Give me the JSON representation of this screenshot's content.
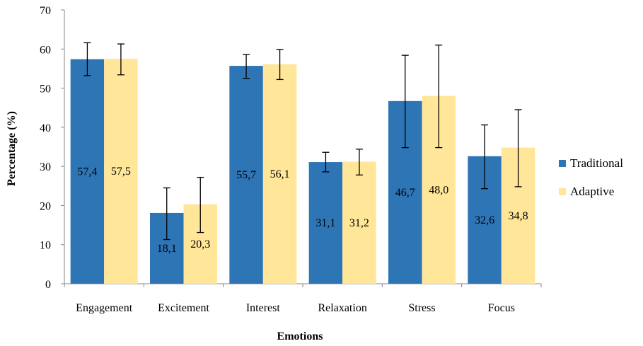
{
  "chart_data": {
    "type": "bar",
    "categories": [
      "Engagement",
      "Excitement",
      "Interest",
      "Relaxation",
      "Stress",
      "Focus"
    ],
    "series": [
      {
        "name": "Traditional",
        "color": "#2E75B6",
        "values": [
          57.4,
          18.1,
          55.7,
          31.1,
          46.7,
          32.6
        ],
        "labels": [
          "57,4",
          "18,1",
          "55,7",
          "31,1",
          "46,7",
          "32,6"
        ],
        "error_low": [
          53.2,
          11.3,
          52.5,
          28.6,
          34.8,
          24.3
        ],
        "error_high": [
          61.6,
          24.5,
          58.6,
          33.6,
          58.4,
          40.6
        ]
      },
      {
        "name": "Adaptive",
        "color": "#FFE699",
        "values": [
          57.5,
          20.3,
          56.1,
          31.2,
          48.0,
          34.8
        ],
        "labels": [
          "57,5",
          "20,3",
          "56,1",
          "31,2",
          "48,0",
          "34,8"
        ],
        "error_low": [
          53.4,
          13.1,
          52.2,
          27.8,
          34.8,
          24.8
        ],
        "error_high": [
          61.3,
          27.2,
          59.9,
          34.4,
          61.0,
          44.5
        ]
      }
    ],
    "xlabel": "Emotions",
    "ylabel": "Percentage (%)",
    "ylim": [
      0,
      70
    ],
    "yticks": [
      0,
      10,
      20,
      30,
      40,
      50,
      60,
      70
    ],
    "grid": false,
    "legend_position": "right"
  }
}
